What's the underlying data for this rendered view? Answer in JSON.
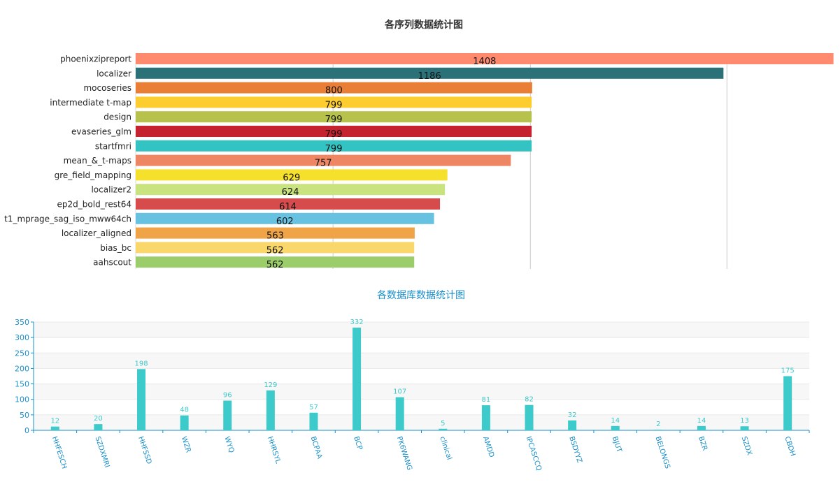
{
  "chart_data": [
    {
      "type": "bar",
      "orientation": "horizontal",
      "title": "各序列数据统计图",
      "categories": [
        "phoenixzipreport",
        "localizer",
        "mocoseries",
        "intermediate t-map",
        "design",
        "evaseries_glm",
        "startfmri",
        "mean_&_t-maps",
        "gre_field_mapping",
        "localizer2",
        "ep2d_bold_rest64",
        "t1_mprage_sag_iso_mww64ch",
        "localizer_aligned",
        "bias_bc",
        "aahscout"
      ],
      "values": [
        1408,
        1186,
        800,
        799,
        799,
        799,
        799,
        757,
        629,
        624,
        614,
        602,
        563,
        562,
        562
      ],
      "colors": [
        "#ff8a6e",
        "#2a7278",
        "#e97e36",
        "#fdcd30",
        "#b6c24c",
        "#c4232f",
        "#33c3c2",
        "#ef8663",
        "#f5e12c",
        "#c9e37f",
        "#d64b4b",
        "#67c1e0",
        "#eea447",
        "#f9d76b",
        "#9ccd6b"
      ],
      "xlim": [
        0,
        1400
      ],
      "grid": true
    },
    {
      "type": "bar",
      "title": "各数据库数据统计图",
      "categories": [
        "HHFESCH",
        "SZDXMRI",
        "HHFSSD",
        "WZR",
        "WYQ",
        "HHRSYL",
        "BCPAA",
        "BCP",
        "PK6WANG",
        "clinical",
        "AMDD",
        "IPCASCCQ",
        "BSDYYZ",
        "BJUT",
        "BELONGS",
        "BZR",
        "SZDX",
        "CBDH"
      ],
      "values": [
        12,
        20,
        198,
        48,
        96,
        129,
        57,
        332,
        107,
        5,
        81,
        82,
        32,
        14,
        2,
        14,
        13,
        175
      ],
      "y_ticks": [
        0,
        50,
        100,
        150,
        200,
        250,
        300,
        350
      ],
      "ylim": [
        0,
        350
      ],
      "bar_color": "#3ccacb",
      "axis_color": "#1a8fc9",
      "grid": true
    }
  ]
}
